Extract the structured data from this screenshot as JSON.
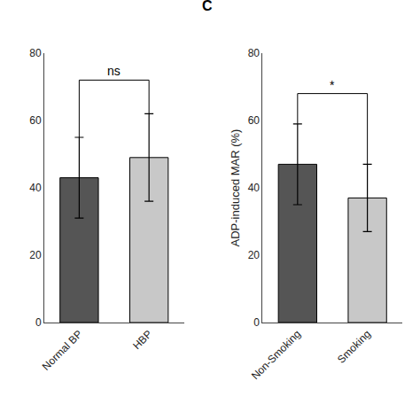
{
  "chart_data": [
    {
      "type": "bar",
      "categories": [
        "Normal BP",
        "HBP"
      ],
      "values": [
        43,
        49
      ],
      "errors": [
        12,
        13
      ],
      "colors": [
        "#555555",
        "#c8c8c8"
      ],
      "ylim": [
        0,
        80
      ],
      "yticks": [
        0,
        20,
        40,
        60,
        80
      ],
      "grid": false,
      "annotations": [
        {
          "text": "ns",
          "between": [
            "Normal BP",
            "HBP"
          ],
          "y": 72
        }
      ]
    },
    {
      "type": "bar",
      "title": "C",
      "categories": [
        "Non-Smoking",
        "Smoking"
      ],
      "values": [
        47,
        37
      ],
      "errors": [
        12,
        10
      ],
      "colors": [
        "#555555",
        "#c8c8c8"
      ],
      "ylabel": "ADP-induced MAR (%)",
      "ylim": [
        0,
        80
      ],
      "yticks": [
        0,
        20,
        40,
        60,
        80
      ],
      "grid": false,
      "annotations": [
        {
          "text": "*",
          "between": [
            "Non-Smoking",
            "Smoking"
          ],
          "y": 68
        }
      ]
    }
  ]
}
